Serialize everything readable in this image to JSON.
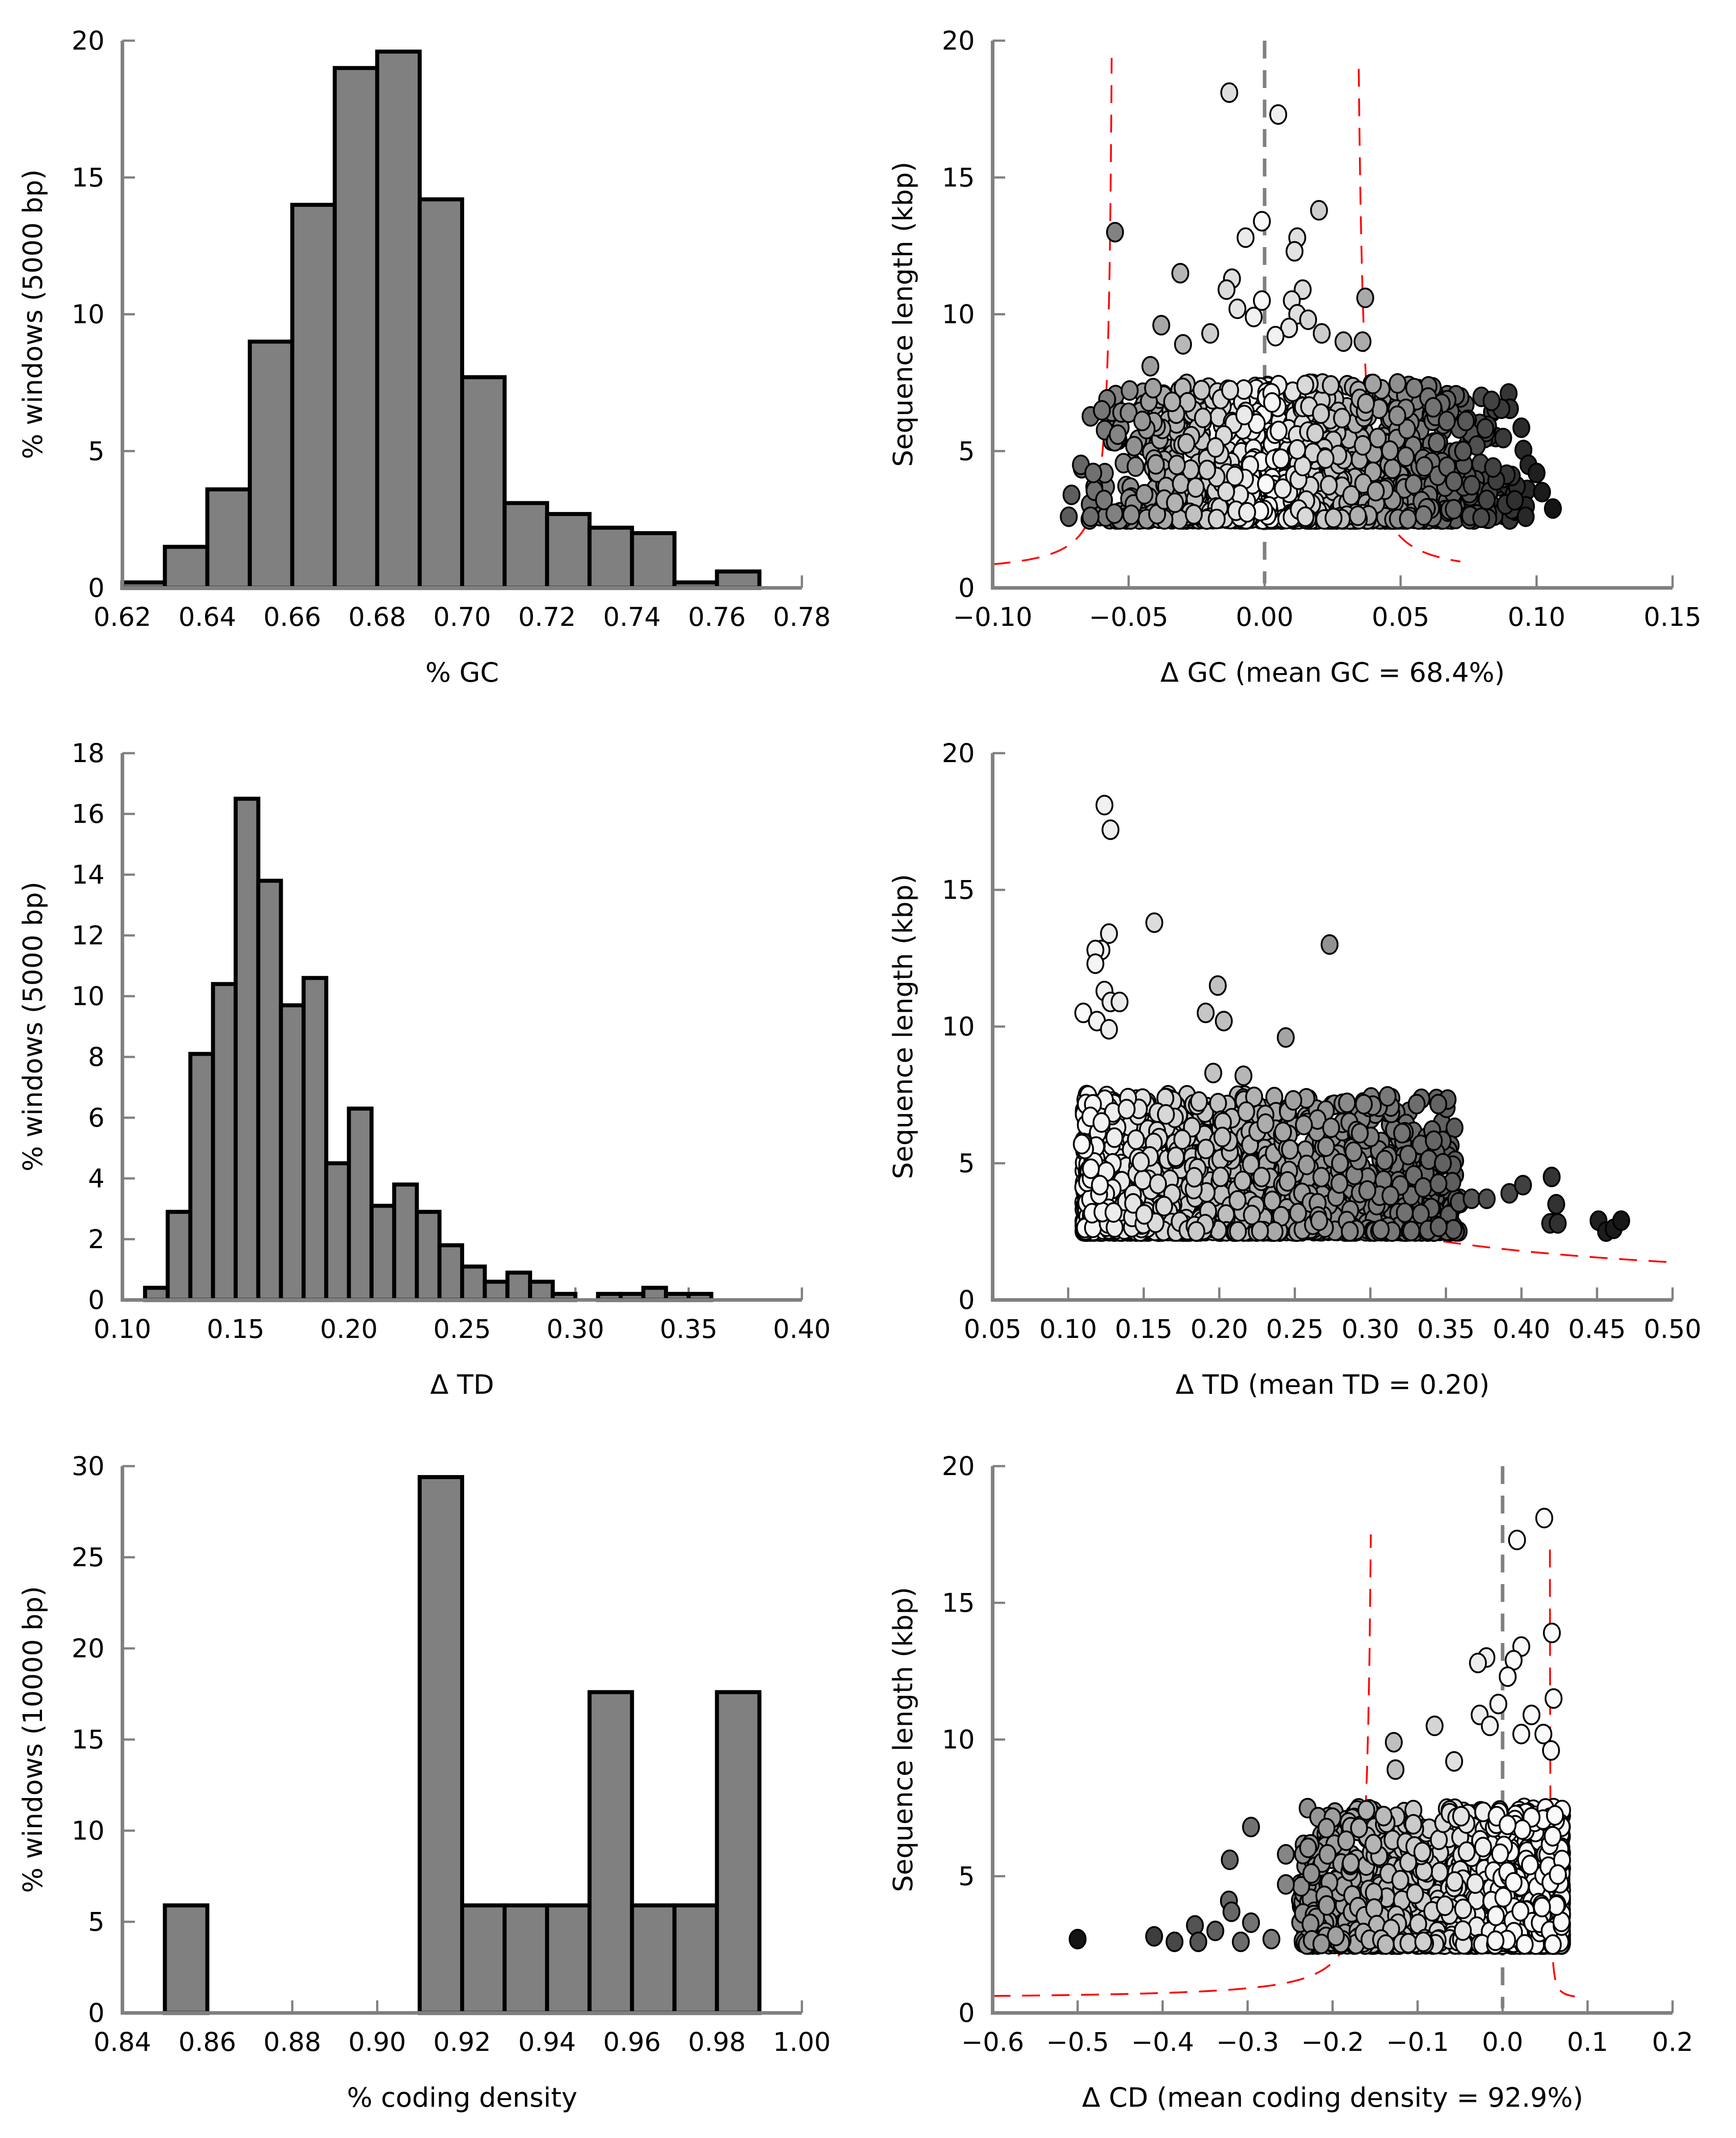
{
  "figure": {
    "panels": 6
  },
  "chart_data": [
    {
      "id": "gc-hist",
      "type": "bar",
      "title": "",
      "xlabel": "% GC",
      "ylabel": "% windows (5000 bp)",
      "xlim": [
        0.62,
        0.78
      ],
      "ylim": [
        0,
        20
      ],
      "xticks": [
        "0.62",
        "0.64",
        "0.66",
        "0.68",
        "0.70",
        "0.72",
        "0.74",
        "0.76",
        "0.78"
      ],
      "yticks": [
        "0",
        "5",
        "10",
        "15",
        "20"
      ],
      "bin_width": 0.01,
      "bins": [
        0.62,
        0.63,
        0.64,
        0.65,
        0.66,
        0.67,
        0.68,
        0.69,
        0.7,
        0.71,
        0.72,
        0.73,
        0.74,
        0.75,
        0.76
      ],
      "values": [
        0.2,
        1.5,
        3.6,
        9.0,
        14.0,
        19.0,
        19.6,
        14.2,
        7.7,
        3.1,
        2.7,
        2.2,
        2.0,
        0.2,
        0.6
      ],
      "bar_color": "#808080"
    },
    {
      "id": "gc-scatter",
      "type": "scatter",
      "title": "",
      "xlabel": "Δ GC (mean GC = 68.4%)",
      "ylabel": "Sequence length (kbp)",
      "xlim": [
        -0.1,
        0.15
      ],
      "ylim": [
        0,
        20
      ],
      "xticks": [
        "−0.10",
        "−0.05",
        "0.00",
        "0.05",
        "0.10",
        "0.15"
      ],
      "xtick_values": [
        -0.1,
        -0.05,
        0.0,
        0.05,
        0.1,
        0.15
      ],
      "yticks": [
        "0",
        "5",
        "10",
        "15",
        "20"
      ],
      "reference_line_x": 0.0,
      "boundary_curves": {
        "color": "#ff0000",
        "style": "dashed",
        "left_asymptote": -0.055,
        "right_asymptote": 0.032
      },
      "dense_cloud": {
        "x_range": [
          -0.07,
          0.1
        ],
        "y_range": [
          2.5,
          7.5
        ],
        "min_length": 2.5,
        "count": 1400,
        "shading": "by |x| (white near 0, black at extremes)"
      },
      "outliers": [
        [
          -0.013,
          18.1
        ],
        [
          0.005,
          17.3
        ],
        [
          0.02,
          13.8
        ],
        [
          -0.001,
          13.4
        ],
        [
          -0.055,
          13.0
        ],
        [
          -0.007,
          12.8
        ],
        [
          0.012,
          12.8
        ],
        [
          0.011,
          12.3
        ],
        [
          -0.031,
          11.5
        ],
        [
          -0.012,
          11.3
        ],
        [
          -0.014,
          10.9
        ],
        [
          0.014,
          10.9
        ],
        [
          0.037,
          10.6
        ],
        [
          -0.001,
          10.5
        ],
        [
          0.01,
          10.5
        ],
        [
          0.012,
          10.0
        ],
        [
          -0.01,
          10.2
        ],
        [
          -0.004,
          9.9
        ],
        [
          0.016,
          9.8
        ],
        [
          -0.038,
          9.6
        ],
        [
          -0.02,
          9.3
        ],
        [
          0.021,
          9.3
        ],
        [
          0.009,
          9.5
        ],
        [
          0.029,
          9.0
        ],
        [
          0.036,
          9.0
        ],
        [
          -0.03,
          8.9
        ],
        [
          0.004,
          9.2
        ],
        [
          -0.042,
          8.1
        ],
        [
          -0.041,
          7.3
        ],
        [
          -0.034,
          6.8
        ],
        [
          -0.05,
          6.4
        ],
        [
          -0.045,
          6.1
        ],
        [
          0.055,
          7.3
        ],
        [
          0.062,
          6.6
        ],
        [
          0.067,
          6.1
        ],
        [
          0.074,
          6.1
        ],
        [
          -0.054,
          5.6
        ],
        [
          0.078,
          5.2
        ],
        [
          0.073,
          5.0
        ],
        [
          -0.063,
          4.2
        ],
        [
          -0.071,
          3.4
        ],
        [
          -0.072,
          2.6
        ],
        [
          -0.064,
          2.6
        ],
        [
          0.097,
          4.5
        ],
        [
          0.1,
          4.2
        ],
        [
          0.102,
          3.5
        ],
        [
          0.106,
          2.9
        ],
        [
          0.096,
          2.6
        ],
        [
          0.092,
          3.2
        ],
        [
          0.084,
          4.4
        ]
      ]
    },
    {
      "id": "td-hist",
      "type": "bar",
      "title": "",
      "xlabel": "Δ TD",
      "ylabel": "% windows (5000 bp)",
      "xlim": [
        0.1,
        0.4
      ],
      "ylim": [
        0,
        18
      ],
      "xticks": [
        "0.10",
        "0.15",
        "0.20",
        "0.25",
        "0.30",
        "0.35",
        "0.40"
      ],
      "yticks": [
        "0",
        "2",
        "4",
        "6",
        "8",
        "10",
        "12",
        "14",
        "16",
        "18"
      ],
      "bin_width": 0.01,
      "bins": [
        0.11,
        0.12,
        0.13,
        0.14,
        0.15,
        0.16,
        0.17,
        0.18,
        0.19,
        0.2,
        0.21,
        0.22,
        0.23,
        0.24,
        0.25,
        0.26,
        0.27,
        0.28,
        0.29,
        0.3,
        0.31,
        0.32,
        0.33,
        0.34,
        0.35
      ],
      "values": [
        0.4,
        2.9,
        8.1,
        10.4,
        16.5,
        13.8,
        9.7,
        10.6,
        4.5,
        6.3,
        3.1,
        3.8,
        2.9,
        1.8,
        1.1,
        0.6,
        0.9,
        0.6,
        0.2,
        0.0,
        0.2,
        0.2,
        0.4,
        0.2,
        0.2
      ],
      "bar_color": "#808080"
    },
    {
      "id": "td-scatter",
      "type": "scatter",
      "title": "",
      "xlabel": "Δ TD (mean TD = 0.20)",
      "ylabel": "Sequence length (kbp)",
      "xlim": [
        0.05,
        0.5
      ],
      "ylim": [
        0,
        20
      ],
      "xticks": [
        "0.05",
        "0.10",
        "0.15",
        "0.20",
        "0.25",
        "0.30",
        "0.35",
        "0.40",
        "0.45",
        "0.50"
      ],
      "xtick_values": [
        0.05,
        0.1,
        0.15,
        0.2,
        0.25,
        0.3,
        0.35,
        0.4,
        0.45,
        0.5
      ],
      "yticks": [
        "0",
        "5",
        "10",
        "15",
        "20"
      ],
      "boundary_curves": {
        "color": "#ff0000",
        "style": "dashed",
        "from": [
          0.19,
          20.0
        ],
        "to": [
          0.5,
          0.65
        ]
      },
      "dense_cloud": {
        "x_range": [
          0.11,
          0.36
        ],
        "y_range": [
          2.5,
          7.5
        ],
        "min_length": 2.5,
        "count": 1400,
        "shading": "by x (white at low TD, black at high TD)"
      },
      "outliers": [
        [
          0.124,
          18.1
        ],
        [
          0.128,
          17.2
        ],
        [
          0.157,
          13.8
        ],
        [
          0.127,
          13.4
        ],
        [
          0.122,
          12.8
        ],
        [
          0.118,
          12.8
        ],
        [
          0.118,
          12.3
        ],
        [
          0.273,
          13.0
        ],
        [
          0.124,
          11.3
        ],
        [
          0.128,
          10.9
        ],
        [
          0.134,
          10.9
        ],
        [
          0.199,
          11.5
        ],
        [
          0.11,
          10.5
        ],
        [
          0.191,
          10.5
        ],
        [
          0.203,
          10.2
        ],
        [
          0.244,
          9.6
        ],
        [
          0.119,
          10.2
        ],
        [
          0.127,
          9.9
        ],
        [
          0.216,
          8.2
        ],
        [
          0.196,
          8.3
        ],
        [
          0.249,
          7.3
        ],
        [
          0.265,
          6.6
        ],
        [
          0.256,
          6.4
        ],
        [
          0.274,
          6.3
        ],
        [
          0.293,
          6.1
        ],
        [
          0.321,
          6.1
        ],
        [
          0.325,
          5.3
        ],
        [
          0.348,
          5.0
        ],
        [
          0.367,
          3.7
        ],
        [
          0.377,
          3.7
        ],
        [
          0.392,
          3.9
        ],
        [
          0.401,
          4.2
        ],
        [
          0.42,
          4.5
        ],
        [
          0.423,
          3.5
        ],
        [
          0.419,
          2.8
        ],
        [
          0.424,
          2.8
        ],
        [
          0.451,
          2.9
        ],
        [
          0.456,
          2.5
        ],
        [
          0.461,
          2.6
        ],
        [
          0.466,
          2.9
        ],
        [
          0.109,
          5.7
        ],
        [
          0.115,
          4.8
        ],
        [
          0.121,
          4.2
        ],
        [
          0.13,
          3.2
        ]
      ]
    },
    {
      "id": "cd-hist",
      "type": "bar",
      "title": "",
      "xlabel": "% coding density",
      "ylabel": "% windows (10000 bp)",
      "xlim": [
        0.84,
        1.0
      ],
      "ylim": [
        0,
        30
      ],
      "xticks": [
        "0.84",
        "0.86",
        "0.88",
        "0.90",
        "0.92",
        "0.94",
        "0.96",
        "0.98",
        "1.00"
      ],
      "yticks": [
        "0",
        "5",
        "10",
        "15",
        "20",
        "25",
        "30"
      ],
      "bin_width": 0.01,
      "bins": [
        0.85,
        0.91,
        0.92,
        0.93,
        0.94,
        0.95,
        0.96,
        0.97,
        0.98
      ],
      "values": [
        5.9,
        29.4,
        5.9,
        5.9,
        5.9,
        17.6,
        5.9,
        5.9,
        17.6
      ],
      "bar_color": "#808080"
    },
    {
      "id": "cd-scatter",
      "type": "scatter",
      "title": "",
      "xlabel": "Δ CD (mean coding density = 92.9%)",
      "ylabel": "Sequence length (kbp)",
      "xlim": [
        -0.6,
        0.2
      ],
      "ylim": [
        0,
        20
      ],
      "xticks": [
        "−0.6",
        "−0.5",
        "−0.4",
        "−0.3",
        "−0.2",
        "−0.1",
        "0.0",
        "0.1",
        "0.2"
      ],
      "xtick_values": [
        -0.6,
        -0.5,
        -0.4,
        -0.3,
        -0.2,
        -0.1,
        0.0,
        0.1,
        0.2
      ],
      "yticks": [
        "0",
        "5",
        "10",
        "15",
        "20"
      ],
      "reference_line_x": 0.0,
      "boundary_curves": {
        "color": "#ff0000",
        "style": "dashed",
        "left_asymptote": -0.15,
        "right_asymptote": 0.055
      },
      "dense_cloud": {
        "x_range": [
          -0.24,
          0.07
        ],
        "y_range": [
          2.5,
          7.5
        ],
        "min_length": 2.5,
        "count": 1400,
        "shading": "by x (white near 0, black at very negative)"
      },
      "outliers": [
        [
          0.049,
          18.1
        ],
        [
          0.017,
          17.3
        ],
        [
          0.058,
          13.9
        ],
        [
          0.022,
          13.4
        ],
        [
          -0.019,
          13.0
        ],
        [
          -0.029,
          12.8
        ],
        [
          0.013,
          12.9
        ],
        [
          0.006,
          12.3
        ],
        [
          -0.005,
          11.3
        ],
        [
          0.06,
          11.5
        ],
        [
          -0.027,
          10.9
        ],
        [
          0.034,
          10.9
        ],
        [
          -0.08,
          10.5
        ],
        [
          -0.015,
          10.5
        ],
        [
          0.022,
          10.2
        ],
        [
          0.048,
          10.2
        ],
        [
          -0.128,
          9.9
        ],
        [
          -0.126,
          8.9
        ],
        [
          0.057,
          9.6
        ],
        [
          -0.057,
          9.2
        ],
        [
          -0.14,
          7.2
        ],
        [
          -0.105,
          6.9
        ],
        [
          -0.296,
          6.8
        ],
        [
          -0.184,
          6.3
        ],
        [
          -0.255,
          5.8
        ],
        [
          -0.206,
          5.8
        ],
        [
          -0.321,
          5.6
        ],
        [
          -0.225,
          5.1
        ],
        [
          -0.255,
          4.7
        ],
        [
          -0.322,
          4.1
        ],
        [
          -0.319,
          3.7
        ],
        [
          -0.362,
          3.2
        ],
        [
          -0.338,
          3.0
        ],
        [
          -0.296,
          3.3
        ],
        [
          -0.5,
          2.7
        ],
        [
          -0.41,
          2.8
        ],
        [
          -0.386,
          2.6
        ],
        [
          -0.358,
          2.6
        ],
        [
          -0.308,
          2.6
        ],
        [
          -0.272,
          2.7
        ]
      ]
    }
  ]
}
